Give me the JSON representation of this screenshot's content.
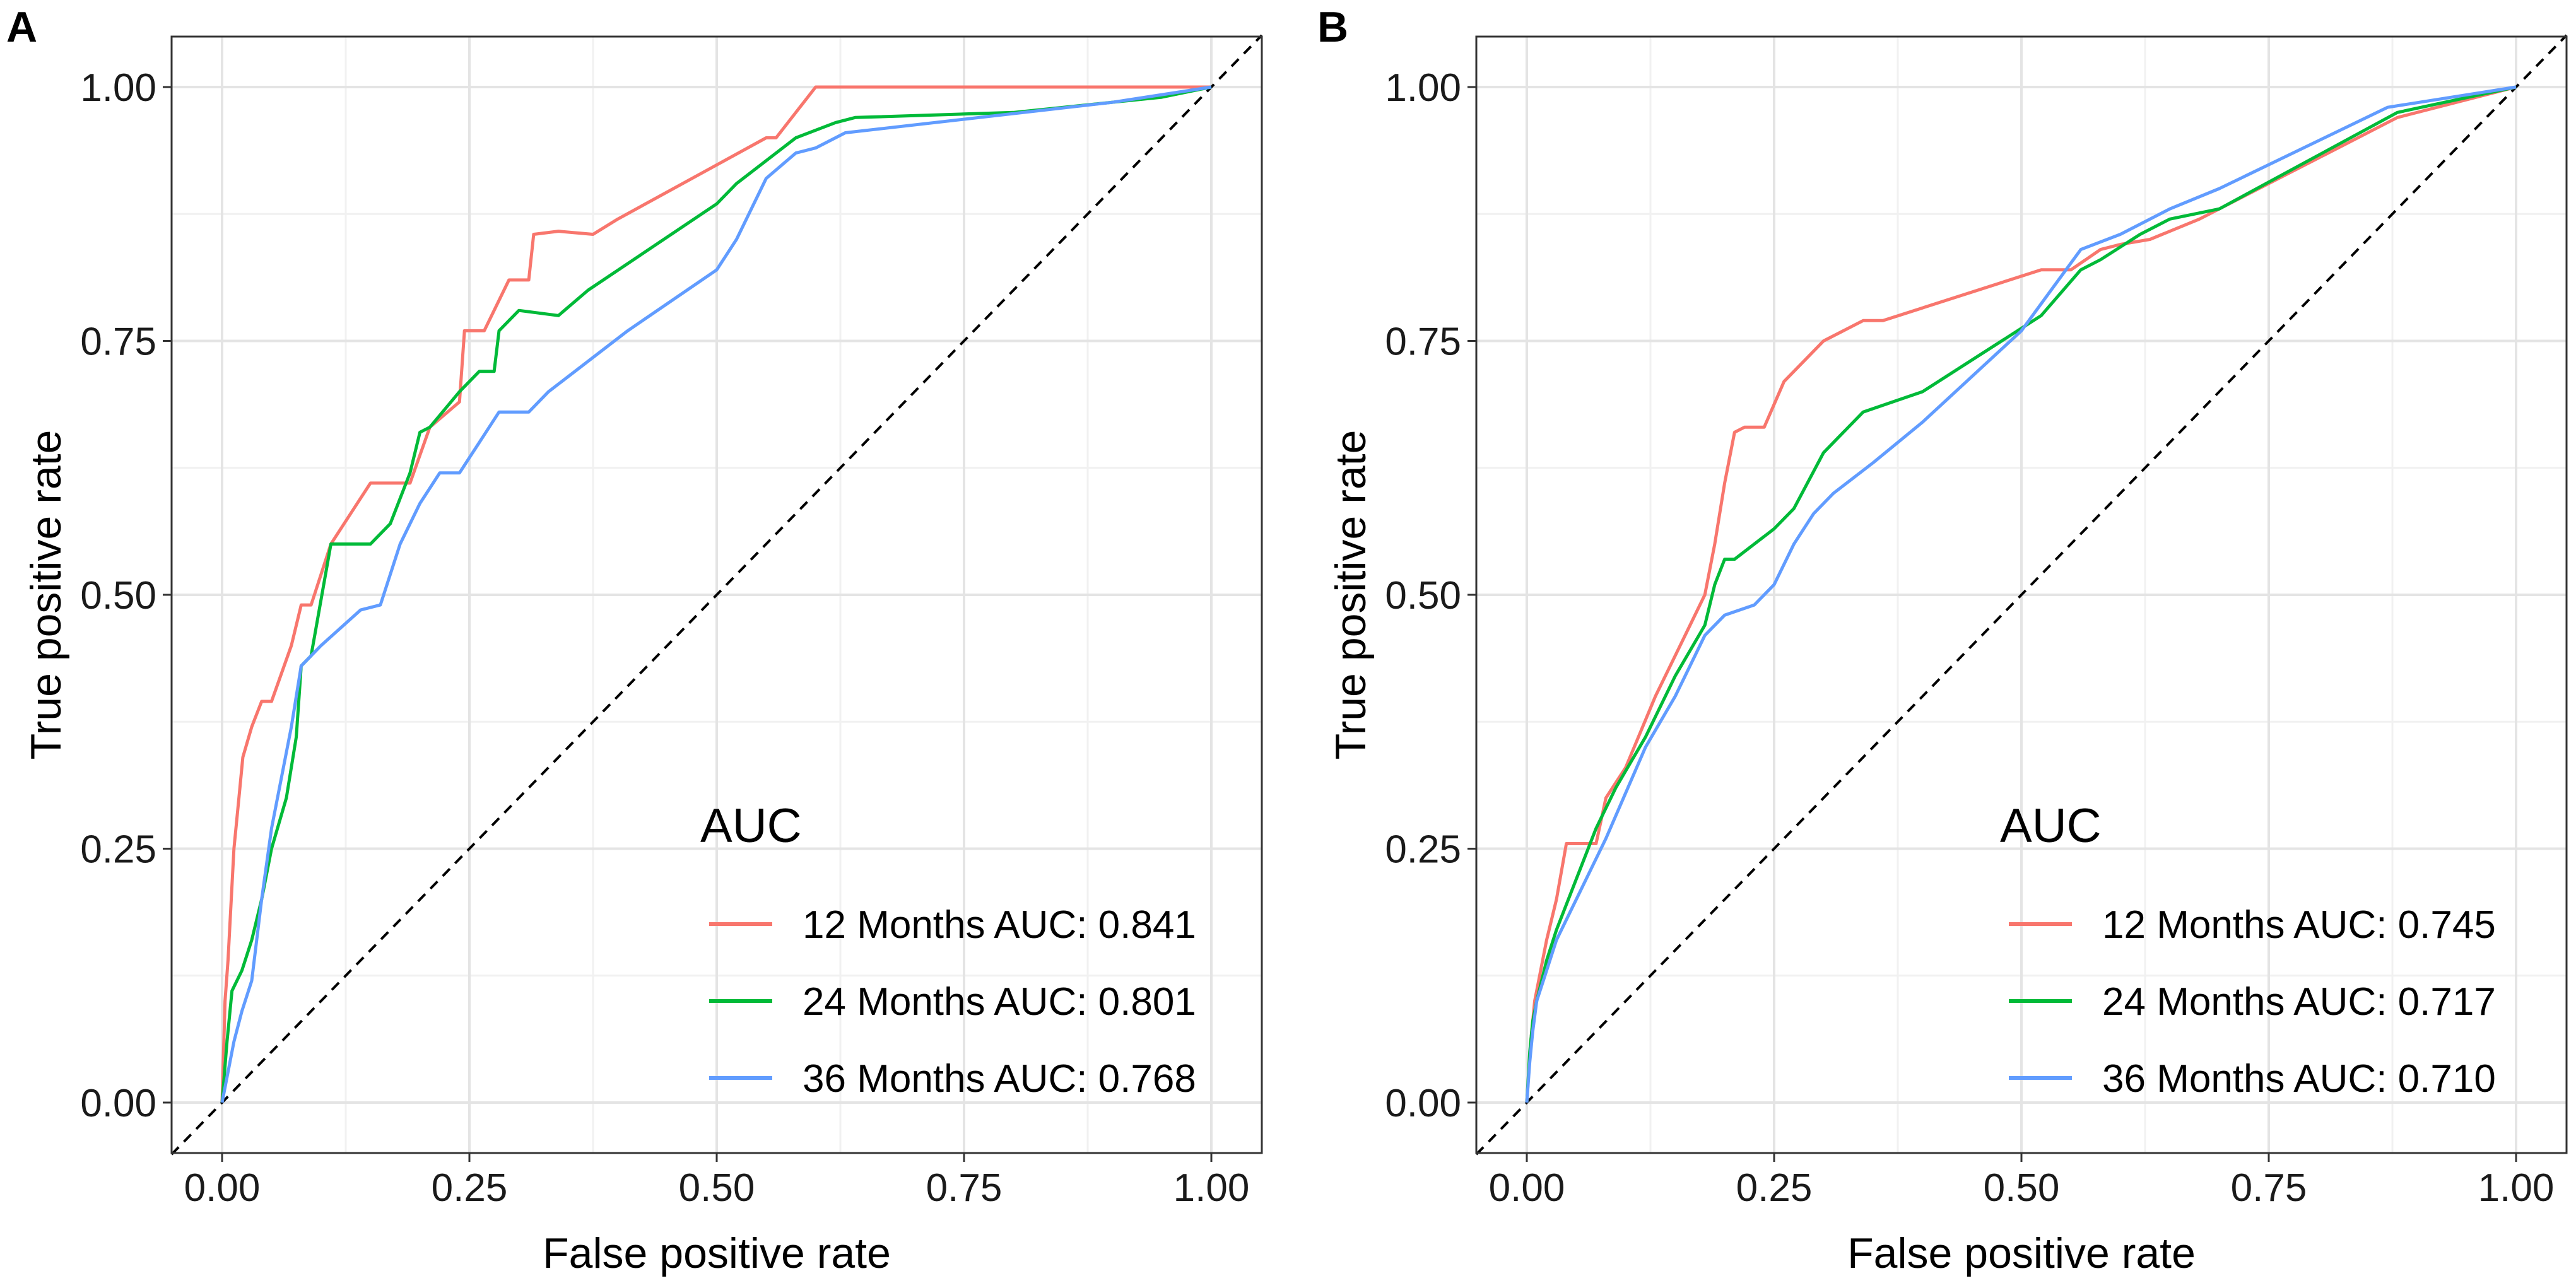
{
  "chart_data": [
    {
      "panel": "A",
      "type": "line",
      "xlabel": "False positive rate",
      "ylabel": "True positive rate",
      "xlim": [
        0,
        1
      ],
      "ylim": [
        0,
        1
      ],
      "xticks": [
        "0.00",
        "0.25",
        "0.50",
        "0.75",
        "1.00"
      ],
      "yticks": [
        "0.00",
        "0.25",
        "0.50",
        "0.75",
        "1.00"
      ],
      "diagonal": true,
      "grid": true,
      "legend": {
        "title": "AUC",
        "position": "bottom-right"
      },
      "series": [
        {
          "name": "12 Months AUC: 0.841",
          "color": "#F8766D",
          "x": [
            0,
            0.003,
            0.006,
            0.012,
            0.017,
            0.021,
            0.03,
            0.04,
            0.05,
            0.07,
            0.08,
            0.09,
            0.11,
            0.13,
            0.15,
            0.19,
            0.21,
            0.24,
            0.245,
            0.265,
            0.29,
            0.31,
            0.315,
            0.34,
            0.375,
            0.4,
            0.55,
            0.56,
            0.6,
            0.67,
            0.85,
            0.9,
            1.0
          ],
          "y": [
            0,
            0.1,
            0.14,
            0.25,
            0.3,
            0.34,
            0.37,
            0.395,
            0.395,
            0.45,
            0.49,
            0.49,
            0.55,
            0.58,
            0.61,
            0.61,
            0.665,
            0.69,
            0.76,
            0.76,
            0.81,
            0.81,
            0.855,
            0.858,
            0.855,
            0.87,
            0.95,
            0.95,
            1.0,
            1.0,
            1.0,
            1.0,
            1.0
          ]
        },
        {
          "name": "24 Months AUC: 0.801",
          "color": "#00BA38",
          "x": [
            0,
            0.005,
            0.01,
            0.02,
            0.03,
            0.04,
            0.05,
            0.065,
            0.075,
            0.08,
            0.09,
            0.11,
            0.15,
            0.17,
            0.19,
            0.2,
            0.21,
            0.24,
            0.26,
            0.275,
            0.28,
            0.3,
            0.34,
            0.37,
            0.5,
            0.52,
            0.58,
            0.62,
            0.64,
            0.8,
            0.95,
            1.0
          ],
          "y": [
            0,
            0.06,
            0.11,
            0.13,
            0.16,
            0.2,
            0.25,
            0.3,
            0.36,
            0.43,
            0.44,
            0.55,
            0.55,
            0.57,
            0.62,
            0.66,
            0.665,
            0.7,
            0.72,
            0.72,
            0.76,
            0.78,
            0.775,
            0.8,
            0.885,
            0.905,
            0.95,
            0.965,
            0.97,
            0.975,
            0.99,
            1.0
          ]
        },
        {
          "name": "36 Months AUC: 0.768",
          "color": "#619CFF",
          "x": [
            0,
            0.006,
            0.012,
            0.02,
            0.03,
            0.04,
            0.05,
            0.06,
            0.07,
            0.08,
            0.1,
            0.14,
            0.16,
            0.18,
            0.2,
            0.22,
            0.24,
            0.26,
            0.28,
            0.31,
            0.33,
            0.41,
            0.5,
            0.52,
            0.55,
            0.58,
            0.6,
            0.63,
            0.9,
            1.0
          ],
          "y": [
            0,
            0.03,
            0.06,
            0.09,
            0.12,
            0.2,
            0.27,
            0.32,
            0.37,
            0.43,
            0.45,
            0.485,
            0.49,
            0.55,
            0.59,
            0.62,
            0.62,
            0.65,
            0.68,
            0.68,
            0.7,
            0.76,
            0.82,
            0.85,
            0.91,
            0.935,
            0.94,
            0.955,
            0.985,
            1.0
          ]
        }
      ]
    },
    {
      "panel": "B",
      "type": "line",
      "xlabel": "False positive rate",
      "ylabel": "True positive rate",
      "xlim": [
        0,
        1
      ],
      "ylim": [
        0,
        1
      ],
      "xticks": [
        "0.00",
        "0.25",
        "0.50",
        "0.75",
        "1.00"
      ],
      "yticks": [
        "0.00",
        "0.25",
        "0.50",
        "0.75",
        "1.00"
      ],
      "diagonal": true,
      "grid": true,
      "legend": {
        "title": "AUC",
        "position": "bottom-right"
      },
      "series": [
        {
          "name": "12 Months AUC: 0.745",
          "color": "#F8766D",
          "x": [
            0,
            0.004,
            0.008,
            0.012,
            0.02,
            0.03,
            0.04,
            0.07,
            0.08,
            0.1,
            0.13,
            0.16,
            0.18,
            0.19,
            0.2,
            0.21,
            0.22,
            0.24,
            0.26,
            0.28,
            0.3,
            0.32,
            0.34,
            0.36,
            0.52,
            0.55,
            0.58,
            0.6,
            0.63,
            0.68,
            0.88,
            1.0
          ],
          "y": [
            0,
            0.06,
            0.1,
            0.12,
            0.16,
            0.2,
            0.255,
            0.255,
            0.3,
            0.33,
            0.4,
            0.46,
            0.5,
            0.55,
            0.61,
            0.66,
            0.665,
            0.665,
            0.71,
            0.73,
            0.75,
            0.76,
            0.77,
            0.77,
            0.82,
            0.82,
            0.84,
            0.845,
            0.85,
            0.87,
            0.97,
            1.0
          ]
        },
        {
          "name": "24 Months AUC: 0.717",
          "color": "#00BA38",
          "x": [
            0,
            0.003,
            0.006,
            0.01,
            0.02,
            0.03,
            0.05,
            0.07,
            0.09,
            0.12,
            0.15,
            0.18,
            0.19,
            0.2,
            0.21,
            0.23,
            0.25,
            0.27,
            0.3,
            0.34,
            0.4,
            0.52,
            0.56,
            0.58,
            0.62,
            0.65,
            0.7,
            0.88,
            1.0
          ],
          "y": [
            0,
            0.05,
            0.08,
            0.1,
            0.14,
            0.17,
            0.22,
            0.27,
            0.31,
            0.36,
            0.42,
            0.47,
            0.51,
            0.535,
            0.535,
            0.55,
            0.565,
            0.585,
            0.64,
            0.68,
            0.7,
            0.775,
            0.82,
            0.83,
            0.855,
            0.87,
            0.88,
            0.975,
            1.0
          ]
        },
        {
          "name": "36 Months AUC: 0.710",
          "color": "#619CFF",
          "x": [
            0,
            0.003,
            0.006,
            0.01,
            0.02,
            0.03,
            0.05,
            0.08,
            0.12,
            0.15,
            0.18,
            0.2,
            0.23,
            0.25,
            0.27,
            0.29,
            0.31,
            0.35,
            0.4,
            0.5,
            0.53,
            0.56,
            0.6,
            0.65,
            0.7,
            0.87,
            1.0
          ],
          "y": [
            0,
            0.04,
            0.07,
            0.1,
            0.13,
            0.16,
            0.2,
            0.26,
            0.35,
            0.4,
            0.46,
            0.48,
            0.49,
            0.51,
            0.55,
            0.58,
            0.6,
            0.63,
            0.67,
            0.76,
            0.8,
            0.84,
            0.855,
            0.88,
            0.9,
            0.98,
            1.0
          ]
        }
      ]
    }
  ]
}
